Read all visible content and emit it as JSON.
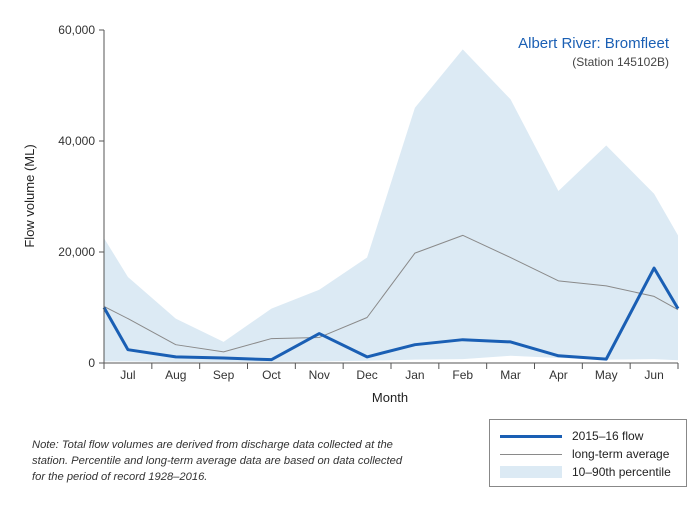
{
  "chart_data": {
    "type": "line",
    "title": "Albert River: Bromfleet",
    "subtitle": "(Station 145102B)",
    "xlabel": "Month",
    "ylabel": "Flow volume (ML)",
    "ylim": [
      0,
      60000
    ],
    "yticks": [
      0,
      20000,
      40000,
      60000
    ],
    "ytick_labels": [
      "0",
      "20,000",
      "40,000",
      "60,000"
    ],
    "categories": [
      "Jul",
      "Aug",
      "Sep",
      "Oct",
      "Nov",
      "Dec",
      "Jan",
      "Feb",
      "Mar",
      "Apr",
      "May",
      "Jun"
    ],
    "x": [
      0,
      1,
      2,
      3,
      4,
      5,
      6,
      7,
      8,
      9,
      10,
      11,
      12
    ],
    "grid": false,
    "legend_position": "bottom-right, outside plot",
    "series": [
      {
        "name": "10–90th percentile",
        "kind": "band",
        "color": "#dceaf4",
        "upper": [
          22500,
          15500,
          8000,
          3800,
          9800,
          13200,
          19000,
          46000,
          56500,
          47500,
          31000,
          39200,
          30500,
          23000
        ],
        "lower": [
          300,
          300,
          200,
          200,
          200,
          300,
          400,
          600,
          700,
          1300,
          900,
          600,
          700,
          500
        ],
        "x_upper": [
          0,
          0.5,
          1.5,
          2.5,
          3.5,
          4.5,
          5.5,
          6.5,
          7.5,
          8.5,
          9.5,
          10.5,
          11.5,
          12
        ],
        "x_lower": [
          0,
          0.5,
          1.5,
          2.5,
          3.5,
          4.5,
          5.5,
          6.5,
          7.5,
          8.5,
          9.5,
          10.5,
          11.5,
          12
        ]
      },
      {
        "name": "long-term average",
        "kind": "line",
        "color": "#8a8a8a",
        "x": [
          0,
          0.5,
          1.5,
          2.5,
          3.5,
          4.5,
          5.5,
          6.5,
          7.5,
          8.5,
          9.5,
          10.5,
          11.5,
          12
        ],
        "values": [
          10200,
          8000,
          3300,
          2000,
          4400,
          4600,
          8200,
          19800,
          23000,
          19000,
          14800,
          13900,
          12000,
          9600
        ]
      },
      {
        "name": "2015–16 flow",
        "kind": "line",
        "color": "#1a5fb4",
        "x": [
          0,
          0.5,
          1.5,
          2.5,
          3.5,
          4.5,
          5.5,
          6.5,
          7.5,
          8.5,
          9.5,
          10.5,
          11.5,
          12
        ],
        "values": [
          10000,
          2400,
          1100,
          900,
          600,
          5300,
          1100,
          3300,
          4200,
          3800,
          1300,
          700,
          17100,
          9800
        ]
      }
    ]
  },
  "legend": {
    "flow_label": "2015–16 flow",
    "average_label": "long-term average",
    "percentile_label": "10–90th percentile"
  },
  "note": "Note: Total flow volumes are derived from discharge data collected at the station. Percentile and long-term average data are based on data collected for the period of record 1928–2016."
}
